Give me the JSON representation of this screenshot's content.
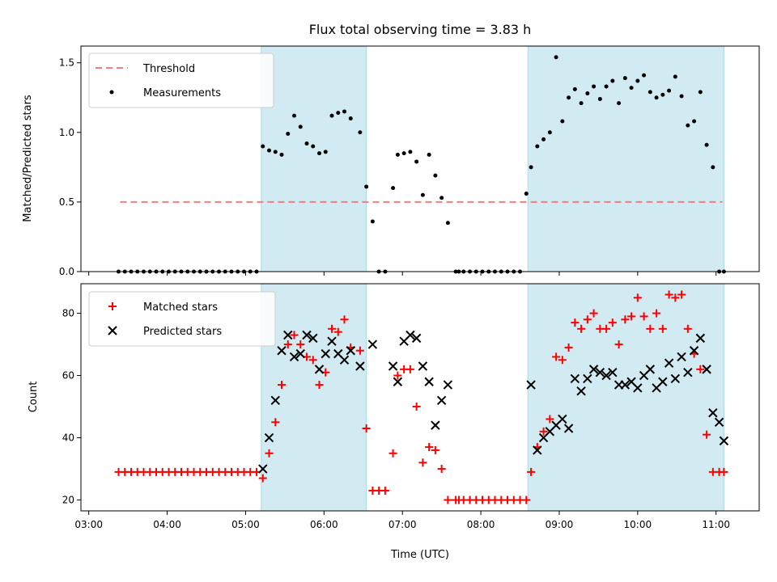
{
  "title": "Flux total observing time = 3.83 h",
  "xlabel": "Time (UTC)",
  "x_ticks": [
    "03:00",
    "04:00",
    "05:00",
    "06:00",
    "07:00",
    "08:00",
    "09:00",
    "10:00",
    "11:00"
  ],
  "x_range_hours": [
    2.9,
    11.55
  ],
  "colors": {
    "shade": "#add8e6",
    "threshold": "#f08080",
    "measurement": "#000000",
    "matched": "#ff0000",
    "predicted": "#000000"
  },
  "chart_data": [
    {
      "type": "scatter",
      "ylabel": "Matched/Predicted stars",
      "ylim": [
        0,
        1.62
      ],
      "y_ticks": [
        "0.0",
        "0.5",
        "1.0",
        "1.5"
      ],
      "y_tick_values": [
        0,
        0.5,
        1.0,
        1.5
      ],
      "legend_position": "upper left",
      "shaded_intervals_hours": [
        [
          5.2,
          6.54
        ],
        [
          8.6,
          11.1
        ]
      ],
      "threshold": {
        "name": "Threshold",
        "value": 0.5,
        "x_hours": [
          3.4,
          11.08
        ]
      },
      "series": [
        {
          "name": "Measurements",
          "x_hours": [
            3.38,
            3.46,
            3.54,
            3.62,
            3.7,
            3.78,
            3.86,
            3.94,
            4.02,
            4.1,
            4.18,
            4.26,
            4.34,
            4.42,
            4.5,
            4.58,
            4.66,
            4.74,
            4.82,
            4.9,
            4.98,
            5.06,
            5.14,
            5.22,
            5.3,
            5.38,
            5.46,
            5.54,
            5.62,
            5.7,
            5.78,
            5.86,
            5.94,
            6.02,
            6.1,
            6.18,
            6.26,
            6.34,
            6.46,
            6.54,
            6.62,
            6.7,
            6.78,
            6.88,
            6.94,
            7.02,
            7.1,
            7.18,
            7.26,
            7.34,
            7.42,
            7.5,
            7.58,
            7.68,
            7.72,
            7.78,
            7.86,
            7.94,
            8.02,
            8.1,
            8.18,
            8.26,
            8.34,
            8.42,
            8.5,
            8.58,
            8.64,
            8.72,
            8.8,
            8.88,
            8.96,
            9.04,
            9.12,
            9.2,
            9.28,
            9.36,
            9.44,
            9.52,
            9.6,
            9.68,
            9.76,
            9.84,
            9.92,
            10.0,
            10.08,
            10.16,
            10.24,
            10.32,
            10.4,
            10.48,
            10.56,
            10.64,
            10.72,
            10.8,
            10.88,
            10.96,
            11.04,
            11.1
          ],
          "y": [
            0,
            0,
            0,
            0,
            0,
            0,
            0,
            0,
            0,
            0,
            0,
            0,
            0,
            0,
            0,
            0,
            0,
            0,
            0,
            0,
            0,
            0,
            0,
            0.9,
            0.87,
            0.86,
            0.84,
            0.99,
            1.12,
            1.04,
            0.92,
            0.9,
            0.85,
            0.86,
            1.12,
            1.14,
            1.15,
            1.1,
            1.0,
            0.61,
            0.36,
            0,
            0,
            0.6,
            0.84,
            0.85,
            0.86,
            0.79,
            0.55,
            0.84,
            0.69,
            0.53,
            0.35,
            0,
            0,
            0,
            0,
            0,
            0,
            0,
            0,
            0,
            0,
            0,
            0,
            0.56,
            0.75,
            0.9,
            0.95,
            1.0,
            1.54,
            1.08,
            1.25,
            1.31,
            1.21,
            1.28,
            1.33,
            1.24,
            1.33,
            1.37,
            1.21,
            1.39,
            1.32,
            1.37,
            1.41,
            1.29,
            1.25,
            1.27,
            1.3,
            1.4,
            1.26,
            1.05,
            1.08,
            1.29,
            0.91,
            0.75,
            0,
            0
          ]
        }
      ]
    },
    {
      "type": "scatter",
      "ylabel": "Count",
      "ylim": [
        16.5,
        89.5
      ],
      "y_ticks": [
        "20",
        "40",
        "60",
        "80"
      ],
      "y_tick_values": [
        20,
        40,
        60,
        80
      ],
      "legend_position": "upper left",
      "shaded_intervals_hours": [
        [
          5.2,
          6.54
        ],
        [
          8.6,
          11.1
        ]
      ],
      "series": [
        {
          "name": "Matched stars",
          "marker": "+",
          "x_hours": [
            3.38,
            3.46,
            3.54,
            3.62,
            3.7,
            3.78,
            3.86,
            3.94,
            4.02,
            4.1,
            4.18,
            4.26,
            4.34,
            4.42,
            4.5,
            4.58,
            4.66,
            4.74,
            4.82,
            4.9,
            4.98,
            5.06,
            5.14,
            5.22,
            5.3,
            5.38,
            5.46,
            5.54,
            5.62,
            5.7,
            5.78,
            5.86,
            5.94,
            6.02,
            6.1,
            6.18,
            6.26,
            6.34,
            6.46,
            6.54,
            6.62,
            6.7,
            6.78,
            6.88,
            6.94,
            7.02,
            7.1,
            7.18,
            7.26,
            7.34,
            7.42,
            7.5,
            7.58,
            7.68,
            7.72,
            7.78,
            7.86,
            7.94,
            8.02,
            8.1,
            8.18,
            8.26,
            8.34,
            8.42,
            8.5,
            8.58,
            8.64,
            8.72,
            8.8,
            8.88,
            8.96,
            9.04,
            9.12,
            9.2,
            9.28,
            9.36,
            9.44,
            9.52,
            9.6,
            9.68,
            9.76,
            9.84,
            9.92,
            10.0,
            10.08,
            10.16,
            10.24,
            10.32,
            10.4,
            10.48,
            10.56,
            10.64,
            10.72,
            10.8,
            10.88,
            10.96,
            11.04,
            11.1
          ],
          "y": [
            29,
            29,
            29,
            29,
            29,
            29,
            29,
            29,
            29,
            29,
            29,
            29,
            29,
            29,
            29,
            29,
            29,
            29,
            29,
            29,
            29,
            29,
            29,
            27,
            35,
            45,
            57,
            70,
            73,
            70,
            66,
            65,
            57,
            61,
            75,
            74,
            78,
            69,
            68,
            43,
            23,
            23,
            23,
            35,
            60,
            62,
            62,
            50,
            32,
            37,
            36,
            30,
            20,
            20,
            20,
            20,
            20,
            20,
            20,
            20,
            20,
            20,
            20,
            20,
            20,
            20,
            29,
            37,
            42,
            46,
            66,
            65,
            69,
            77,
            75,
            78,
            80,
            75,
            75,
            77,
            70,
            78,
            79,
            85,
            79,
            75,
            80,
            75,
            86,
            85,
            86,
            75,
            67,
            62,
            41,
            29,
            29,
            29
          ]
        },
        {
          "name": "Predicted stars",
          "marker": "x",
          "x_hours": [
            5.22,
            5.3,
            5.38,
            5.46,
            5.54,
            5.62,
            5.7,
            5.78,
            5.86,
            5.94,
            6.02,
            6.1,
            6.18,
            6.26,
            6.34,
            6.46,
            6.62,
            6.88,
            6.94,
            7.02,
            7.1,
            7.18,
            7.26,
            7.34,
            7.42,
            7.5,
            7.58,
            8.64,
            8.72,
            8.8,
            8.88,
            8.96,
            9.04,
            9.12,
            9.2,
            9.28,
            9.36,
            9.44,
            9.52,
            9.6,
            9.68,
            9.76,
            9.84,
            9.92,
            10.0,
            10.08,
            10.16,
            10.24,
            10.32,
            10.4,
            10.48,
            10.56,
            10.64,
            10.72,
            10.8,
            10.88,
            10.96,
            11.04,
            11.1
          ],
          "y": [
            30,
            40,
            52,
            68,
            73,
            66,
            67,
            73,
            72,
            62,
            67,
            71,
            67,
            65,
            68,
            63,
            70,
            63,
            58,
            71,
            73,
            72,
            63,
            58,
            44,
            52,
            57,
            57,
            36,
            40,
            42,
            44,
            46,
            43,
            59,
            55,
            59,
            62,
            61,
            60,
            61,
            57,
            57,
            58,
            56,
            60,
            62,
            56,
            58,
            64,
            59,
            66,
            61,
            68,
            72,
            62,
            48,
            45,
            39
          ]
        }
      ]
    }
  ]
}
